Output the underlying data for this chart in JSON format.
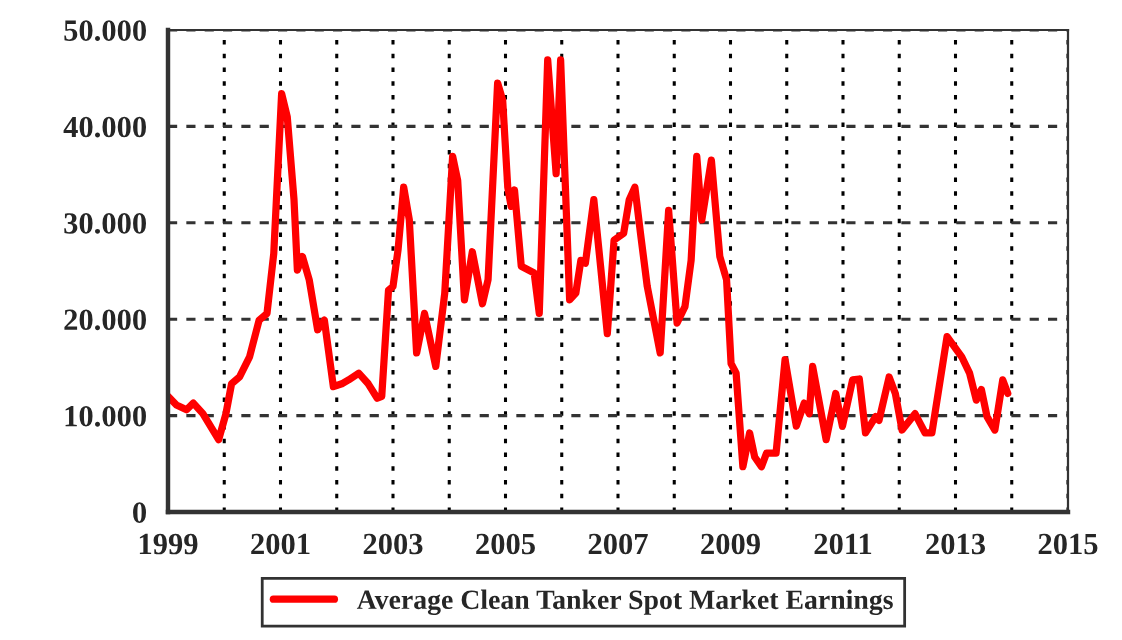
{
  "chart_data": {
    "type": "line",
    "xlim": [
      1999,
      2015
    ],
    "xticks": [
      1999,
      {
        "value": 2000,
        "label": null
      },
      2001,
      {
        "value": 2002,
        "label": null
      },
      2003,
      {
        "value": 2004,
        "label": null
      },
      2005,
      {
        "value": 2006,
        "label": null
      },
      2007,
      {
        "value": 2008,
        "label": null
      },
      2009,
      {
        "value": 2010,
        "label": null
      },
      2011,
      {
        "value": 2012,
        "label": null
      },
      2013,
      {
        "value": 2014,
        "label": null
      },
      2015
    ],
    "ylim": [
      0,
      50000
    ],
    "yticks": [
      {
        "value": 0,
        "label": "0"
      },
      {
        "value": 10000,
        "label": "10.000"
      },
      {
        "value": 20000,
        "label": "20.000"
      },
      {
        "value": 30000,
        "label": "30.000"
      },
      {
        "value": 40000,
        "label": "40.000"
      },
      {
        "value": 50000,
        "label": "50.000"
      }
    ],
    "grid": true,
    "legend": "bottom",
    "marker": "none",
    "line_style": "solid",
    "series": [
      {
        "name": "Average Clean Tanker Spot Market Earnings",
        "color": "#ff0000",
        "x": [
          1999.0,
          1999.15,
          1999.33,
          1999.45,
          1999.62,
          1999.9,
          2000.03,
          2000.13,
          2000.27,
          2000.45,
          2000.62,
          2000.76,
          2000.88,
          2001.02,
          2001.12,
          2001.24,
          2001.3,
          2001.39,
          2001.51,
          2001.66,
          2001.78,
          2001.94,
          2002.09,
          2002.21,
          2002.39,
          2002.56,
          2002.72,
          2002.8,
          2002.92,
          2003.0,
          2003.09,
          2003.19,
          2003.29,
          2003.42,
          2003.56,
          2003.76,
          2003.92,
          2004.06,
          2004.15,
          2004.27,
          2004.41,
          2004.59,
          2004.69,
          2004.86,
          2004.95,
          2005.04,
          2005.1,
          2005.16,
          2005.28,
          2005.51,
          2005.6,
          2005.75,
          2005.9,
          2005.98,
          2006.14,
          2006.25,
          2006.34,
          2006.42,
          2006.57,
          2006.69,
          2006.81,
          2006.93,
          2007.1,
          2007.2,
          2007.3,
          2007.4,
          2007.52,
          2007.75,
          2007.9,
          2008.05,
          2008.19,
          2008.3,
          2008.4,
          2008.49,
          2008.66,
          2008.81,
          2008.93,
          2009.01,
          2009.1,
          2009.22,
          2009.34,
          2009.43,
          2009.55,
          2009.64,
          2009.81,
          2009.97,
          2010.17,
          2010.31,
          2010.4,
          2010.46,
          2010.7,
          2010.87,
          2010.99,
          2011.17,
          2011.29,
          2011.4,
          2011.58,
          2011.64,
          2011.82,
          2011.93,
          2012.05,
          2012.28,
          2012.46,
          2012.58,
          2012.85,
          2013.11,
          2013.25,
          2013.37,
          2013.46,
          2013.56,
          2013.7,
          2013.84,
          2013.93
        ],
        "values": [
          12000,
          11100,
          10600,
          11300,
          10200,
          7500,
          10200,
          13300,
          14000,
          16100,
          19900,
          20600,
          26800,
          43400,
          41000,
          32400,
          25100,
          26500,
          24100,
          18900,
          19900,
          13000,
          13300,
          13700,
          14400,
          13300,
          11800,
          12000,
          23000,
          23400,
          27200,
          33700,
          30300,
          16500,
          20600,
          15100,
          22700,
          36900,
          34400,
          22000,
          27000,
          21600,
          24100,
          44500,
          42700,
          33700,
          31700,
          33400,
          25500,
          24800,
          20600,
          46900,
          35100,
          46900,
          22000,
          22700,
          26100,
          25800,
          32400,
          25500,
          18500,
          28200,
          28900,
          32400,
          33700,
          28900,
          23400,
          16500,
          31300,
          19600,
          21300,
          26100,
          36900,
          30300,
          36500,
          26500,
          24100,
          15400,
          14400,
          4700,
          8200,
          5700,
          4700,
          6100,
          6100,
          15800,
          8900,
          11300,
          10200,
          15100,
          7500,
          12300,
          8900,
          13700,
          13800,
          8200,
          9900,
          9500,
          14000,
          12300,
          8500,
          10200,
          8200,
          8200,
          18200,
          16100,
          14400,
          11600,
          12700,
          9900,
          8500,
          13700,
          12300
        ]
      }
    ]
  }
}
